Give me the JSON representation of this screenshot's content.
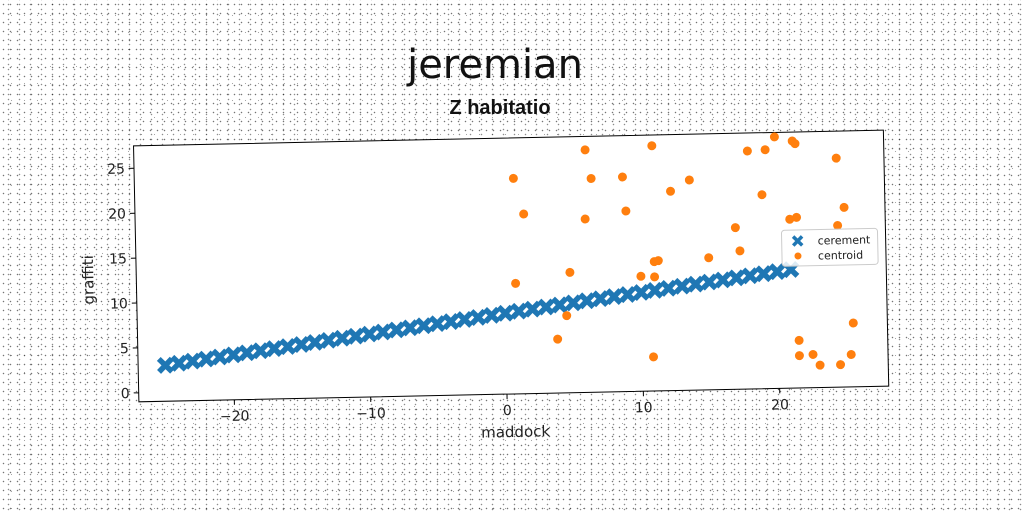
{
  "chart_data": {
    "type": "scatter",
    "title": "jeremian",
    "subtitle": "Z habitatio",
    "xlabel": "maddock",
    "ylabel": "graffiti",
    "xlim": [
      -27,
      28
    ],
    "ylim": [
      -1,
      27.5
    ],
    "xticks": [
      -20,
      -10,
      0,
      10,
      20
    ],
    "yticks": [
      0,
      5,
      10,
      15,
      20,
      25
    ],
    "xtick_labels": [
      "−20",
      "−10",
      "0",
      "10",
      "20"
    ],
    "ytick_labels": [
      "0",
      "5",
      "10",
      "15",
      "20",
      "25"
    ],
    "grid": false,
    "legend_position": "center-right",
    "series": [
      {
        "name": "cerement",
        "marker": "x",
        "color": "#1f77b4",
        "x": [
          -25,
          -24,
          -23,
          -22,
          -21,
          -20,
          -19,
          -18,
          -17,
          -16,
          -15,
          -14,
          -13,
          -12,
          -11,
          -10,
          -9,
          -8,
          -7,
          -6,
          -5,
          -4,
          -3,
          -2,
          -1,
          0,
          1,
          2,
          3,
          4,
          5,
          6,
          7,
          8,
          9,
          10,
          11,
          12,
          13,
          14,
          15,
          16,
          17,
          18,
          19,
          20,
          21
        ],
        "y": [
          3.0,
          3.2,
          3.4,
          3.6,
          3.8,
          4.0,
          4.2,
          4.4,
          4.6,
          4.8,
          5.0,
          5.2,
          5.4,
          5.6,
          5.8,
          6.0,
          6.2,
          6.4,
          6.6,
          6.8,
          7.0,
          7.2,
          7.4,
          7.6,
          7.8,
          8.0,
          8.2,
          8.4,
          8.6,
          8.8,
          9.0,
          9.2,
          9.4,
          9.6,
          9.8,
          10.0,
          10.2,
          10.4,
          10.6,
          10.8,
          11.0,
          11.2,
          11.4,
          11.6,
          11.8,
          12.0,
          12.2
        ]
      },
      {
        "name": "centroid",
        "marker": "o",
        "color": "#ff7f0e",
        "x": [
          0.8,
          1.5,
          6.0,
          6.1,
          6.5,
          8.8,
          9.0,
          11.0,
          12.3,
          13.7,
          17.0,
          18.0,
          19.0,
          19.3,
          20.0,
          21.0,
          21.3,
          21.5,
          21.5,
          24.5,
          25.0,
          24.5,
          0.8,
          4.8,
          10.0,
          11.0,
          11.3,
          11.0,
          15.0,
          17.3,
          4.5,
          3.8,
          10.8,
          21.5,
          21.5,
          22.5,
          23.0,
          24.5,
          25.3,
          25.5
        ],
        "y": [
          23.0,
          19.0,
          18.3,
          26.0,
          22.8,
          22.9,
          19.1,
          26.3,
          21.2,
          22.4,
          17.0,
          25.5,
          20.6,
          25.6,
          27.0,
          17.8,
          26.5,
          26.2,
          18.0,
          24.5,
          19.0,
          17.0,
          11.3,
          12.4,
          11.8,
          13.4,
          13.5,
          11.7,
          13.7,
          14.4,
          7.6,
          5.0,
          2.8,
          4.3,
          2.6,
          2.7,
          1.5,
          1.5,
          2.6,
          6.1
        ]
      }
    ]
  }
}
